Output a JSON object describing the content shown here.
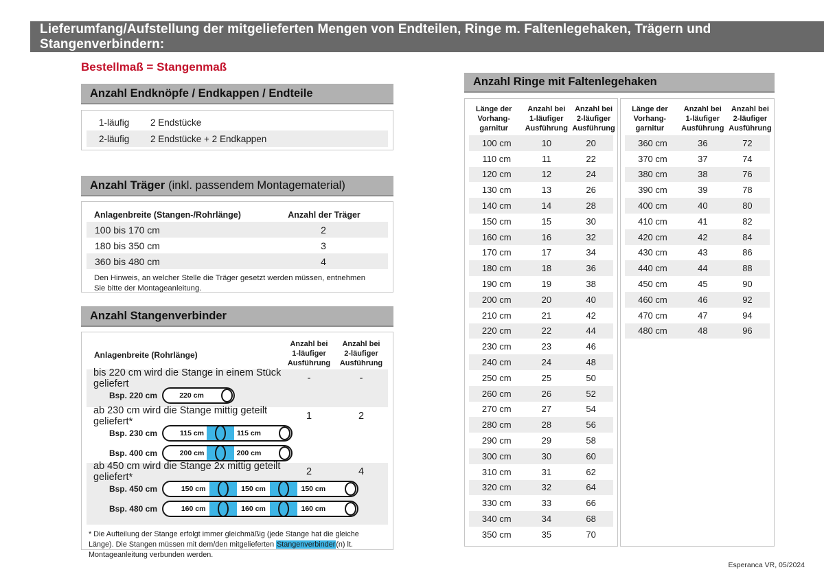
{
  "page": {
    "title": "Lieferumfang/Aufstellung der mitgelieferten Mengen von Endteilen, Ringe m. Faltenlegehaken, Trägern und Stangenverbindern:",
    "subtitle": "Bestellmaß = Stangenmaß",
    "footer": "Esperanca VR, 05/2024"
  },
  "colors": {
    "top_bar": "#696969",
    "section_header": "#b1b1b1",
    "accent_red": "#c3122b",
    "connector_blue": "#3db5e6",
    "row_stripe": "#ececec"
  },
  "end_pieces": {
    "header": "Anzahl Endknöpfe / Endkappen / Endteile",
    "rows": [
      {
        "label": "1-läufig",
        "value": "2 Endstücke"
      },
      {
        "label": "2-läufig",
        "value": "2 Endstücke + 2 Endkappen"
      }
    ]
  },
  "traeger": {
    "header_bold": "Anzahl Träger",
    "header_rest": "(inkl. passendem Montagematerial)",
    "col1": "Anlagenbreite (Stangen-/Rohrlänge)",
    "col2": "Anzahl der Träger",
    "rows": [
      {
        "range": "100 bis 170 cm",
        "count": "2"
      },
      {
        "range": "180 bis 350 cm",
        "count": "3"
      },
      {
        "range": "360 bis 480 cm",
        "count": "4"
      }
    ],
    "note": "Den Hinweis, an welcher Stelle die Träger gesetzt werden müssen, entnehmen Sie bitte der Montageanleitung."
  },
  "verbinder": {
    "header": "Anzahl Stangenverbinder",
    "col1": "Anlagenbreite (Rohrlänge)",
    "col2": "Anzahl bei\n1-läufiger\nAusführung",
    "col3": "Anzahl bei\n2-läufiger\nAusführung",
    "groups": [
      {
        "text": "bis 220 cm wird die Stange in einem Stück geliefert",
        "count1": "-",
        "count2": "-",
        "examples": [
          {
            "label": "Bsp. 220 cm",
            "segments": [
              "220 cm"
            ]
          }
        ]
      },
      {
        "text": "ab 230 cm wird die Stange mittig geteilt geliefert*",
        "count1": "1",
        "count2": "2",
        "examples": [
          {
            "label": "Bsp. 230 cm",
            "segments": [
              "115 cm",
              "115 cm"
            ]
          },
          {
            "label": "Bsp. 400 cm",
            "segments": [
              "200 cm",
              "200 cm"
            ]
          }
        ]
      },
      {
        "text": "ab 450 cm wird die Stange 2x mittig geteilt geliefert*",
        "count1": "2",
        "count2": "4",
        "examples": [
          {
            "label": "Bsp. 450 cm",
            "segments": [
              "150 cm",
              "150 cm",
              "150 cm"
            ]
          },
          {
            "label": "Bsp. 480 cm",
            "segments": [
              "160 cm",
              "160 cm",
              "160 cm"
            ]
          }
        ]
      }
    ],
    "footnote_pre": "* Die Aufteilung der Stange erfolgt immer gleichmäßig (jede Stange hat die gleiche Länge). Die Stangen müssen mit dem/den mitgelieferten ",
    "footnote_highlight": "Stangenverbinder",
    "footnote_post": "(n) lt. Montageanleitung verbunden werden."
  },
  "ringe": {
    "header": "Anzahl Ringe mit Faltenlegehaken",
    "col_headers": [
      "Länge der\nVorhang-\ngarnitur",
      "Anzahl bei\n1-läufiger\nAusführung",
      "Anzahl bei\n2-läufiger\nAusführung"
    ],
    "table1": [
      [
        "100 cm",
        "10",
        "20"
      ],
      [
        "110 cm",
        "11",
        "22"
      ],
      [
        "120 cm",
        "12",
        "24"
      ],
      [
        "130 cm",
        "13",
        "26"
      ],
      [
        "140 cm",
        "14",
        "28"
      ],
      [
        "150 cm",
        "15",
        "30"
      ],
      [
        "160 cm",
        "16",
        "32"
      ],
      [
        "170 cm",
        "17",
        "34"
      ],
      [
        "180 cm",
        "18",
        "36"
      ],
      [
        "190 cm",
        "19",
        "38"
      ],
      [
        "200 cm",
        "20",
        "40"
      ],
      [
        "210 cm",
        "21",
        "42"
      ],
      [
        "220 cm",
        "22",
        "44"
      ],
      [
        "230 cm",
        "23",
        "46"
      ],
      [
        "240 cm",
        "24",
        "48"
      ],
      [
        "250 cm",
        "25",
        "50"
      ],
      [
        "260 cm",
        "26",
        "52"
      ],
      [
        "270 cm",
        "27",
        "54"
      ],
      [
        "280 cm",
        "28",
        "56"
      ],
      [
        "290 cm",
        "29",
        "58"
      ],
      [
        "300 cm",
        "30",
        "60"
      ],
      [
        "310 cm",
        "31",
        "62"
      ],
      [
        "320 cm",
        "32",
        "64"
      ],
      [
        "330 cm",
        "33",
        "66"
      ],
      [
        "340 cm",
        "34",
        "68"
      ],
      [
        "350 cm",
        "35",
        "70"
      ]
    ],
    "table2": [
      [
        "360 cm",
        "36",
        "72"
      ],
      [
        "370 cm",
        "37",
        "74"
      ],
      [
        "380 cm",
        "38",
        "76"
      ],
      [
        "390 cm",
        "39",
        "78"
      ],
      [
        "400 cm",
        "40",
        "80"
      ],
      [
        "410 cm",
        "41",
        "82"
      ],
      [
        "420 cm",
        "42",
        "84"
      ],
      [
        "430 cm",
        "43",
        "86"
      ],
      [
        "440 cm",
        "44",
        "88"
      ],
      [
        "450 cm",
        "45",
        "90"
      ],
      [
        "460 cm",
        "46",
        "92"
      ],
      [
        "470 cm",
        "47",
        "94"
      ],
      [
        "480 cm",
        "48",
        "96"
      ]
    ]
  }
}
